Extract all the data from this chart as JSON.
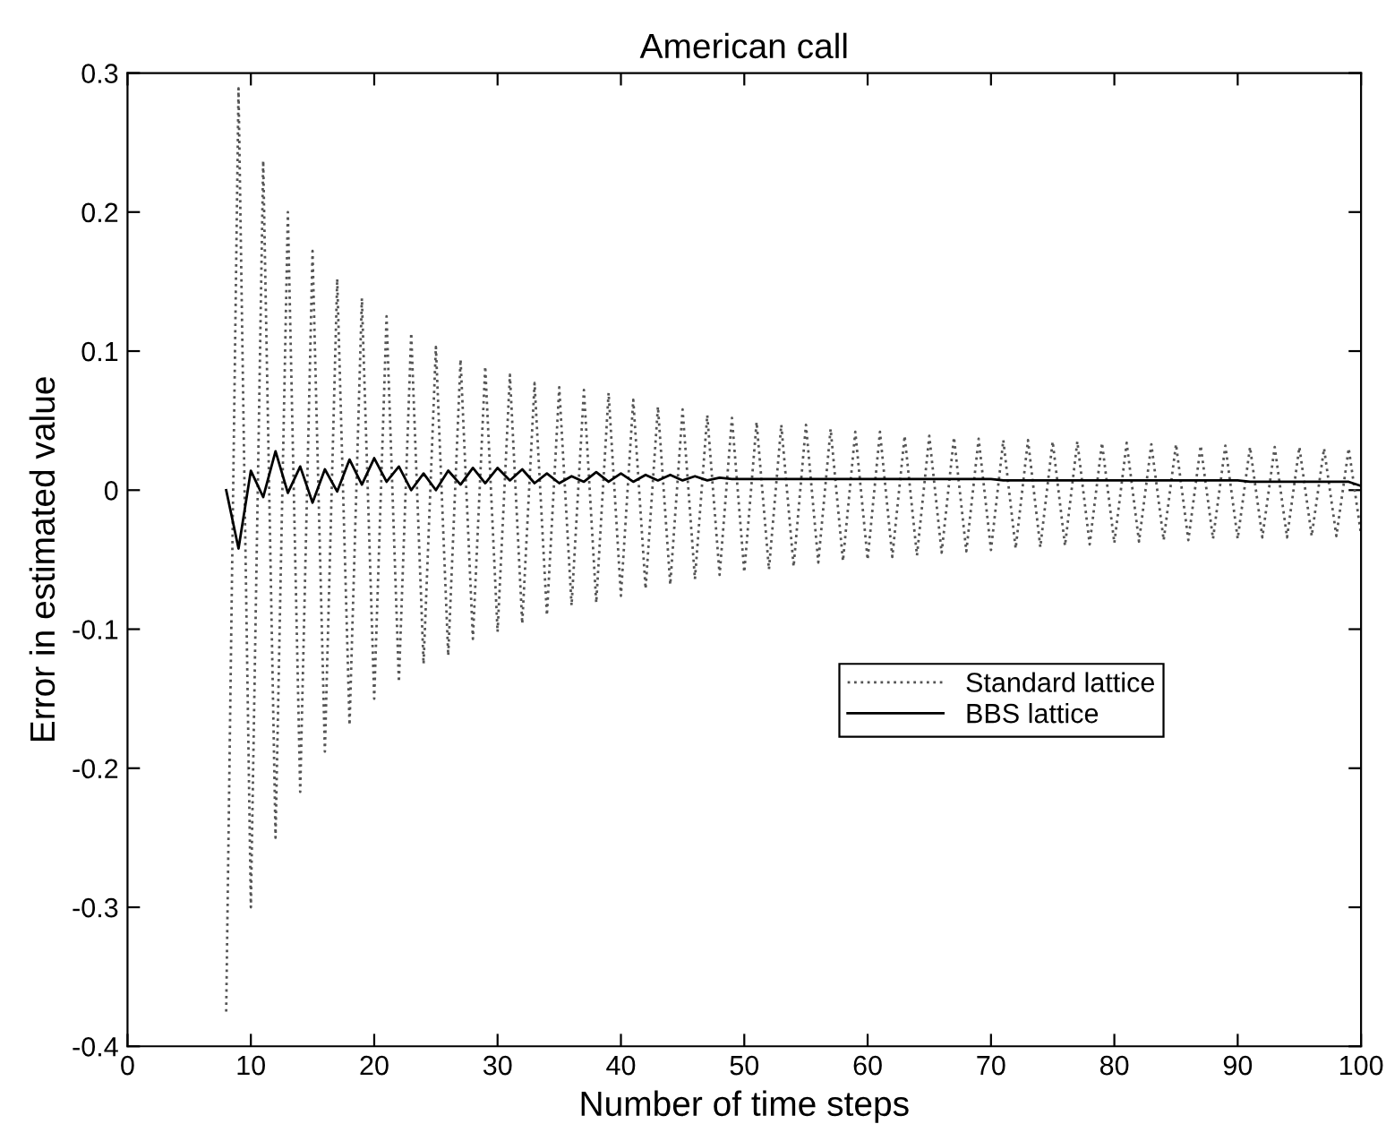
{
  "chart_data": {
    "type": "line",
    "title": "American call",
    "xlabel": "Number of time steps",
    "ylabel": "Error in estimated value",
    "xlim": [
      0,
      100
    ],
    "xticks": [
      0,
      10,
      20,
      30,
      40,
      50,
      60,
      70,
      80,
      90,
      100
    ],
    "ylim": [
      -0.4,
      0.3
    ],
    "yticks": [
      {
        "value": -0.4,
        "label": "-0.4"
      },
      {
        "value": -0.3,
        "label": "-0.3"
      },
      {
        "value": -0.2,
        "label": "-0.2"
      },
      {
        "value": -0.1,
        "label": "-0.1"
      },
      0,
      0.1,
      0.2,
      0.3
    ],
    "grid": false,
    "legend": "right",
    "x": [
      8,
      9,
      10,
      11,
      12,
      13,
      14,
      15,
      16,
      17,
      18,
      19,
      20,
      21,
      22,
      23,
      24,
      25,
      26,
      27,
      28,
      29,
      30,
      31,
      32,
      33,
      34,
      35,
      36,
      37,
      38,
      39,
      40,
      41,
      42,
      43,
      44,
      45,
      46,
      47,
      48,
      49,
      50,
      51,
      52,
      53,
      54,
      55,
      56,
      57,
      58,
      59,
      60,
      61,
      62,
      63,
      64,
      65,
      66,
      67,
      68,
      69,
      70,
      71,
      72,
      73,
      74,
      75,
      76,
      77,
      78,
      79,
      80,
      81,
      82,
      83,
      84,
      85,
      86,
      87,
      88,
      89,
      90,
      91,
      92,
      93,
      94,
      95,
      96,
      97,
      98,
      99,
      100
    ],
    "series": [
      {
        "name": "Standard lattice",
        "color": "#555555",
        "line_style": "dotted",
        "values": [
          -0.375,
          0.289,
          -0.3,
          0.237,
          -0.25,
          0.2,
          -0.217,
          0.172,
          -0.188,
          0.152,
          -0.169,
          0.138,
          -0.15,
          0.125,
          -0.138,
          0.113,
          -0.125,
          0.103,
          -0.119,
          0.094,
          -0.107,
          0.089,
          -0.102,
          0.083,
          -0.096,
          0.077,
          -0.09,
          0.074,
          -0.083,
          0.072,
          -0.081,
          0.07,
          -0.076,
          0.065,
          -0.071,
          0.06,
          -0.068,
          0.058,
          -0.064,
          0.054,
          -0.061,
          0.052,
          -0.059,
          0.049,
          -0.057,
          0.047,
          -0.055,
          0.047,
          -0.052,
          0.044,
          -0.051,
          0.042,
          -0.05,
          0.042,
          -0.048,
          0.039,
          -0.047,
          0.039,
          -0.045,
          0.038,
          -0.044,
          0.037,
          -0.043,
          0.036,
          -0.042,
          0.036,
          -0.041,
          0.035,
          -0.04,
          0.035,
          -0.039,
          0.034,
          -0.038,
          0.034,
          -0.037,
          0.033,
          -0.036,
          0.033,
          -0.036,
          0.032,
          -0.035,
          0.032,
          -0.035,
          0.031,
          -0.034,
          0.031,
          -0.034,
          0.031,
          -0.033,
          0.03,
          -0.033,
          0.03,
          -0.032
        ]
      },
      {
        "name": "BBS lattice",
        "color": "#000000",
        "line_style": "solid",
        "values": [
          0,
          -0.042,
          0.014,
          -0.005,
          0.028,
          -0.002,
          0.017,
          -0.009,
          0.015,
          -0.001,
          0.022,
          0.004,
          0.023,
          0.006,
          0.017,
          0,
          0.012,
          0,
          0.014,
          0.004,
          0.016,
          0.005,
          0.016,
          0.007,
          0.015,
          0.005,
          0.012,
          0.005,
          0.01,
          0.006,
          0.013,
          0.006,
          0.012,
          0.006,
          0.011,
          0.007,
          0.011,
          0.007,
          0.01,
          0.007,
          0.009,
          0.008,
          0.008,
          0.008,
          0.008,
          0.008,
          0.008,
          0.008,
          0.008,
          0.008,
          0.008,
          0.008,
          0.008,
          0.008,
          0.008,
          0.008,
          0.008,
          0.008,
          0.008,
          0.008,
          0.008,
          0.008,
          0.008,
          0.007,
          0.007,
          0.007,
          0.007,
          0.007,
          0.007,
          0.007,
          0.007,
          0.007,
          0.007,
          0.007,
          0.007,
          0.007,
          0.007,
          0.007,
          0.007,
          0.007,
          0.007,
          0.007,
          0.007,
          0.006,
          0.006,
          0.006,
          0.006,
          0.006,
          0.006,
          0.006,
          0.006,
          0.006,
          0.003
        ]
      }
    ]
  }
}
